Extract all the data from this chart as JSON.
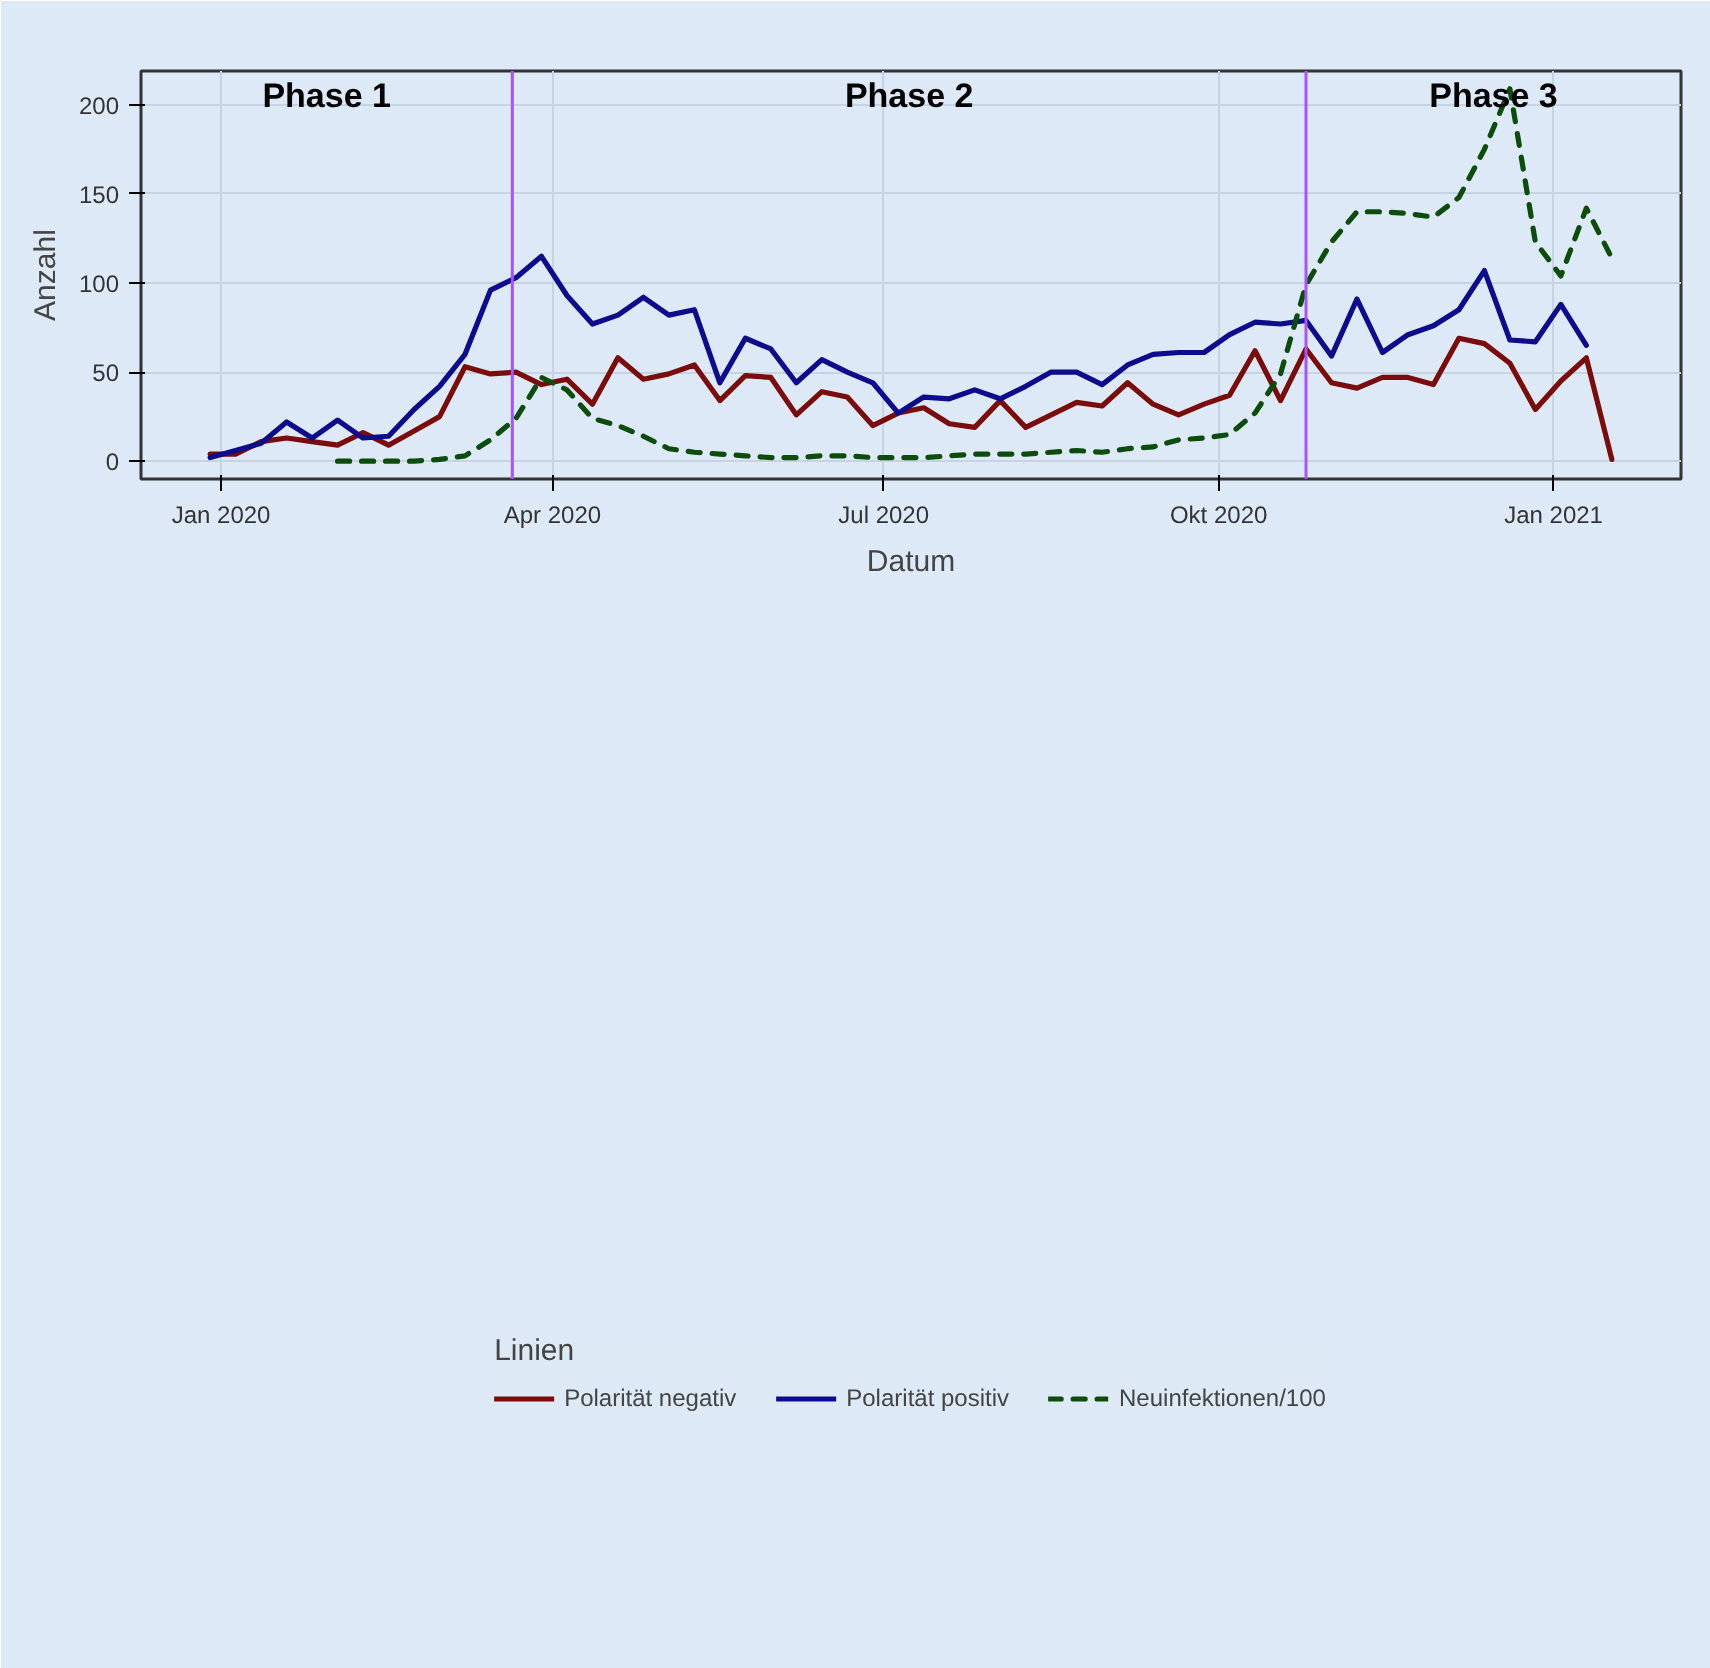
{
  "chart_data": {
    "type": "line",
    "xlabel": "Datum",
    "ylabel": "Anzahl",
    "legend_title": "Linien",
    "xlim": [
      "2019-12-10",
      "2021-02-05"
    ],
    "ylim": [
      -10,
      219
    ],
    "xticks": [
      {
        "value": "2020-01-01",
        "label": "Jan 2020"
      },
      {
        "value": "2020-04-01",
        "label": "Apr 2020"
      },
      {
        "value": "2020-07-01",
        "label": "Jul 2020"
      },
      {
        "value": "2020-10-01",
        "label": "Okt 2020"
      },
      {
        "value": "2021-01-01",
        "label": "Jan 2021"
      }
    ],
    "yticks": [
      0,
      50,
      100,
      150,
      200
    ],
    "grid": true,
    "legend": "bottom",
    "x": [
      "2019-12-29",
      "2020-01-05",
      "2020-01-12",
      "2020-01-19",
      "2020-01-26",
      "2020-02-02",
      "2020-02-09",
      "2020-02-16",
      "2020-02-23",
      "2020-03-01",
      "2020-03-08",
      "2020-03-15",
      "2020-03-22",
      "2020-03-29",
      "2020-04-05",
      "2020-04-12",
      "2020-04-19",
      "2020-04-26",
      "2020-05-03",
      "2020-05-10",
      "2020-05-17",
      "2020-05-24",
      "2020-05-31",
      "2020-06-07",
      "2020-06-14",
      "2020-06-21",
      "2020-06-28",
      "2020-07-05",
      "2020-07-12",
      "2020-07-19",
      "2020-07-26",
      "2020-08-02",
      "2020-08-09",
      "2020-08-16",
      "2020-08-23",
      "2020-08-30",
      "2020-09-06",
      "2020-09-13",
      "2020-09-20",
      "2020-09-27",
      "2020-10-04",
      "2020-10-11",
      "2020-10-18",
      "2020-10-25",
      "2020-11-01",
      "2020-11-08",
      "2020-11-15",
      "2020-11-22",
      "2020-11-29",
      "2020-12-06",
      "2020-12-13",
      "2020-12-20",
      "2020-12-27",
      "2021-01-03",
      "2021-01-10",
      "2021-01-17"
    ],
    "series": [
      {
        "name": "Polarität negativ",
        "color": "#7b0c0c",
        "line_style": "solid",
        "values": [
          4,
          4,
          11,
          13,
          11,
          9,
          16,
          9,
          17,
          25,
          53,
          49,
          50,
          43,
          46,
          32,
          58,
          46,
          49,
          54,
          34,
          48,
          47,
          26,
          39,
          36,
          20,
          27,
          30,
          21,
          19,
          34,
          19,
          26,
          33,
          31,
          44,
          32,
          26,
          32,
          37,
          62,
          34,
          63,
          44,
          41,
          47,
          47,
          43,
          69,
          66,
          55,
          29,
          45,
          58,
          1
        ]
      },
      {
        "name": "Polarität positiv",
        "color": "#0c0c8c",
        "line_style": "solid",
        "values": [
          2,
          6,
          10,
          22,
          13,
          23,
          13,
          14,
          29,
          42,
          60,
          96,
          103,
          115,
          93,
          77,
          82,
          92,
          82,
          85,
          44,
          69,
          63,
          44,
          57,
          50,
          44,
          27,
          36,
          35,
          40,
          35,
          42,
          50,
          50,
          43,
          54,
          60,
          61,
          61,
          71,
          78,
          77,
          79,
          59,
          91,
          61,
          71,
          76,
          85,
          107,
          68,
          67,
          88,
          65,
          null
        ]
      },
      {
        "name": "Neuinfektionen/100",
        "color": "#0c4d0c",
        "line_style": "dashed",
        "values": [
          null,
          null,
          null,
          null,
          null,
          0,
          0,
          0,
          0,
          1,
          3,
          12,
          24,
          47,
          40,
          24,
          20,
          14,
          7,
          5,
          4,
          3,
          2,
          2,
          3,
          3,
          2,
          2,
          2,
          3,
          4,
          4,
          4,
          5,
          6,
          5,
          7,
          8,
          12,
          13,
          15,
          27,
          49,
          99,
          123,
          140,
          140,
          139,
          137,
          148,
          175,
          209,
          123,
          104,
          142,
          114
        ]
      }
    ],
    "ref_lines": [
      {
        "axis": "x",
        "value": "2020-03-21",
        "color": "#a855f7"
      },
      {
        "axis": "x",
        "value": "2020-10-25",
        "color": "#a855f7"
      }
    ],
    "annotations": [
      "Phase 1",
      "Phase 2",
      "Phase 3"
    ]
  }
}
